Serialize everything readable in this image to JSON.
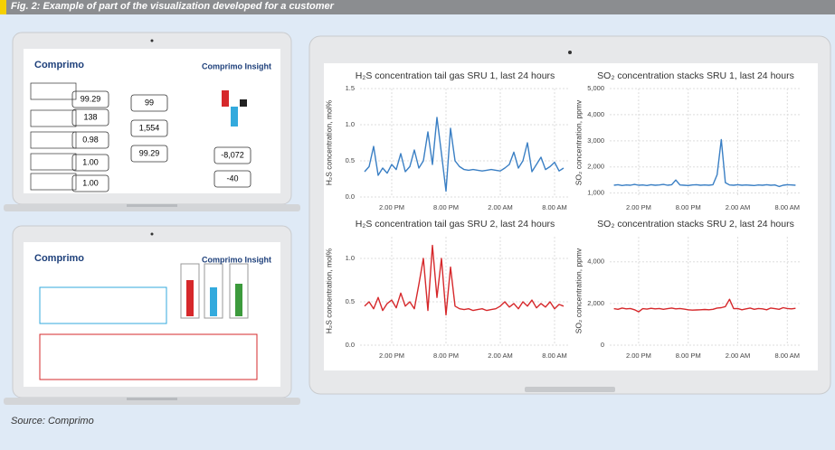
{
  "header": {
    "title": "Fig. 2: Example of part of the visualization developed for a customer"
  },
  "source": "Source: Comprimo",
  "dashboards": [
    {
      "brand": "Comprimo",
      "product": "Comprimo Insight",
      "values": [
        "99.29",
        "138",
        "0.98",
        "1.00",
        "1.00",
        "99",
        "1,554",
        "99.29",
        "-8,072",
        "-40"
      ]
    },
    {
      "brand": "Comprimo",
      "product": "Comprimo Insight"
    }
  ],
  "chart_data": [
    {
      "type": "line",
      "title": "H₂S concentration tail gas SRU 1, last 24 hours",
      "y_label": "H₂S concentration, mol%",
      "color": "#3a7fc4",
      "grid": true,
      "x": [
        11,
        11.5,
        12,
        12.5,
        13,
        13.5,
        14,
        14.5,
        15,
        15.5,
        16,
        16.5,
        17,
        17.5,
        18,
        18.5,
        19,
        19.5,
        20,
        20.5,
        21,
        21.5,
        22,
        22.5,
        23,
        23.5,
        24,
        24.5,
        25,
        25.5,
        26,
        26.5,
        27,
        27.5,
        28,
        28.5,
        29,
        29.5,
        30,
        30.5,
        31,
        31.5,
        32,
        32.5,
        33
      ],
      "values": [
        0.35,
        0.42,
        0.7,
        0.3,
        0.4,
        0.33,
        0.45,
        0.38,
        0.6,
        0.35,
        0.42,
        0.65,
        0.4,
        0.5,
        0.9,
        0.45,
        1.1,
        0.6,
        0.08,
        0.95,
        0.5,
        0.42,
        0.38,
        0.37,
        0.38,
        0.37,
        0.36,
        0.37,
        0.38,
        0.37,
        0.36,
        0.4,
        0.45,
        0.62,
        0.4,
        0.5,
        0.75,
        0.35,
        0.45,
        0.55,
        0.38,
        0.42,
        0.48,
        0.36,
        0.4
      ],
      "xlim": [
        10.5,
        33.5
      ],
      "ylim": [
        0,
        1.5
      ],
      "yticks": [
        {
          "value": 0,
          "label": "0.0"
        },
        0.5,
        {
          "value": 1,
          "label": "1.0"
        },
        1.5
      ],
      "xticks": [
        {
          "value": 14,
          "label": "2.00 PM"
        },
        {
          "value": 20,
          "label": "8.00 PM"
        },
        {
          "value": 26,
          "label": "2.00 AM"
        },
        {
          "value": 32,
          "label": "8.00 AM"
        }
      ]
    },
    {
      "type": "line",
      "title": "SO₂ concentration stacks SRU 1, last 24 hours",
      "y_label": "SO₂ concentration, ppmv",
      "color": "#3a7fc4",
      "grid": true,
      "x": [
        11,
        11.5,
        12,
        12.5,
        13,
        13.5,
        14,
        14.5,
        15,
        15.5,
        16,
        16.5,
        17,
        17.5,
        18,
        18.5,
        19,
        19.5,
        20,
        20.5,
        21,
        21.5,
        22,
        22.5,
        23,
        23.5,
        24,
        24.5,
        25,
        25.5,
        26,
        26.5,
        27,
        27.5,
        28,
        28.5,
        29,
        29.5,
        30,
        30.5,
        31,
        31.5,
        32,
        32.5,
        33
      ],
      "values": [
        1300,
        1320,
        1290,
        1310,
        1300,
        1330,
        1300,
        1310,
        1290,
        1320,
        1300,
        1310,
        1330,
        1300,
        1320,
        1500,
        1310,
        1300,
        1290,
        1310,
        1320,
        1300,
        1310,
        1300,
        1320,
        1700,
        3050,
        1400,
        1310,
        1300,
        1320,
        1300,
        1310,
        1300,
        1290,
        1310,
        1300,
        1320,
        1300,
        1310,
        1250,
        1300,
        1320,
        1310,
        1300
      ],
      "xlim": [
        10.5,
        33.5
      ],
      "ylim": [
        850,
        5000
      ],
      "yticks": [
        {
          "value": 1000,
          "label": "1,000"
        },
        {
          "value": 2000,
          "label": "2,000"
        },
        {
          "value": 3000,
          "label": "3,000"
        },
        {
          "value": 4000,
          "label": "4,000"
        },
        {
          "value": 5000,
          "label": "5,000"
        }
      ],
      "xticks": [
        {
          "value": 14,
          "label": "2.00 PM"
        },
        {
          "value": 20,
          "label": "8.00 PM"
        },
        {
          "value": 26,
          "label": "2.00 AM"
        },
        {
          "value": 32,
          "label": "8.00 AM"
        }
      ]
    },
    {
      "type": "line",
      "title": "H₂S concentration tail gas SRU 2, last 24 hours",
      "y_label": "H₂S concentration, mol%",
      "color": "#d6282b",
      "grid": true,
      "x": [
        11,
        11.5,
        12,
        12.5,
        13,
        13.5,
        14,
        14.5,
        15,
        15.5,
        16,
        16.5,
        17,
        17.5,
        18,
        18.5,
        19,
        19.5,
        20,
        20.5,
        21,
        21.5,
        22,
        22.5,
        23,
        23.5,
        24,
        24.5,
        25,
        25.5,
        26,
        26.5,
        27,
        27.5,
        28,
        28.5,
        29,
        29.5,
        30,
        30.5,
        31,
        31.5,
        32,
        32.5,
        33
      ],
      "values": [
        0.45,
        0.5,
        0.42,
        0.55,
        0.4,
        0.48,
        0.52,
        0.43,
        0.6,
        0.45,
        0.5,
        0.42,
        0.7,
        1.0,
        0.4,
        1.15,
        0.55,
        1.0,
        0.35,
        0.9,
        0.45,
        0.42,
        0.41,
        0.42,
        0.4,
        0.41,
        0.42,
        0.4,
        0.41,
        0.42,
        0.45,
        0.5,
        0.44,
        0.48,
        0.42,
        0.5,
        0.45,
        0.52,
        0.43,
        0.48,
        0.44,
        0.5,
        0.42,
        0.47,
        0.45
      ],
      "xlim": [
        10.5,
        33.5
      ],
      "ylim": [
        0,
        1.25
      ],
      "yticks": [
        {
          "value": 0,
          "label": "0.0"
        },
        0.5,
        {
          "value": 1,
          "label": "1.0"
        }
      ],
      "xticks": [
        {
          "value": 14,
          "label": "2.00 PM"
        },
        {
          "value": 20,
          "label": "8.00 PM"
        },
        {
          "value": 26,
          "label": "2.00 AM"
        },
        {
          "value": 32,
          "label": "8.00 AM"
        }
      ]
    },
    {
      "type": "line",
      "title": "SO₂ concentration stacks SRU 2, last 24 hours",
      "y_label": "SO₂ concentration, ppmv",
      "color": "#d6282b",
      "grid": true,
      "x": [
        11,
        11.5,
        12,
        12.5,
        13,
        13.5,
        14,
        14.5,
        15,
        15.5,
        16,
        16.5,
        17,
        17.5,
        18,
        18.5,
        19,
        19.5,
        20,
        20.5,
        21,
        21.5,
        22,
        22.5,
        23,
        23.5,
        24,
        24.5,
        25,
        25.5,
        26,
        26.5,
        27,
        27.5,
        28,
        28.5,
        29,
        29.5,
        30,
        30.5,
        31,
        31.5,
        32,
        32.5,
        33
      ],
      "values": [
        1750,
        1720,
        1780,
        1740,
        1760,
        1700,
        1600,
        1750,
        1730,
        1770,
        1740,
        1760,
        1720,
        1750,
        1780,
        1740,
        1760,
        1730,
        1700,
        1680,
        1690,
        1700,
        1710,
        1700,
        1720,
        1780,
        1800,
        1850,
        2200,
        1750,
        1760,
        1700,
        1740,
        1780,
        1720,
        1760,
        1740,
        1700,
        1780,
        1750,
        1720,
        1800,
        1760,
        1740,
        1770
      ],
      "xlim": [
        10.5,
        33.5
      ],
      "ylim": [
        0,
        5200
      ],
      "yticks": [
        0,
        {
          "value": 2000,
          "label": "2,000"
        },
        {
          "value": 4000,
          "label": "4,000"
        }
      ],
      "xticks": [
        {
          "value": 14,
          "label": "2.00 PM"
        },
        {
          "value": 20,
          "label": "8.00 PM"
        },
        {
          "value": 26,
          "label": "2.00 AM"
        },
        {
          "value": 32,
          "label": "8.00 AM"
        }
      ]
    }
  ]
}
